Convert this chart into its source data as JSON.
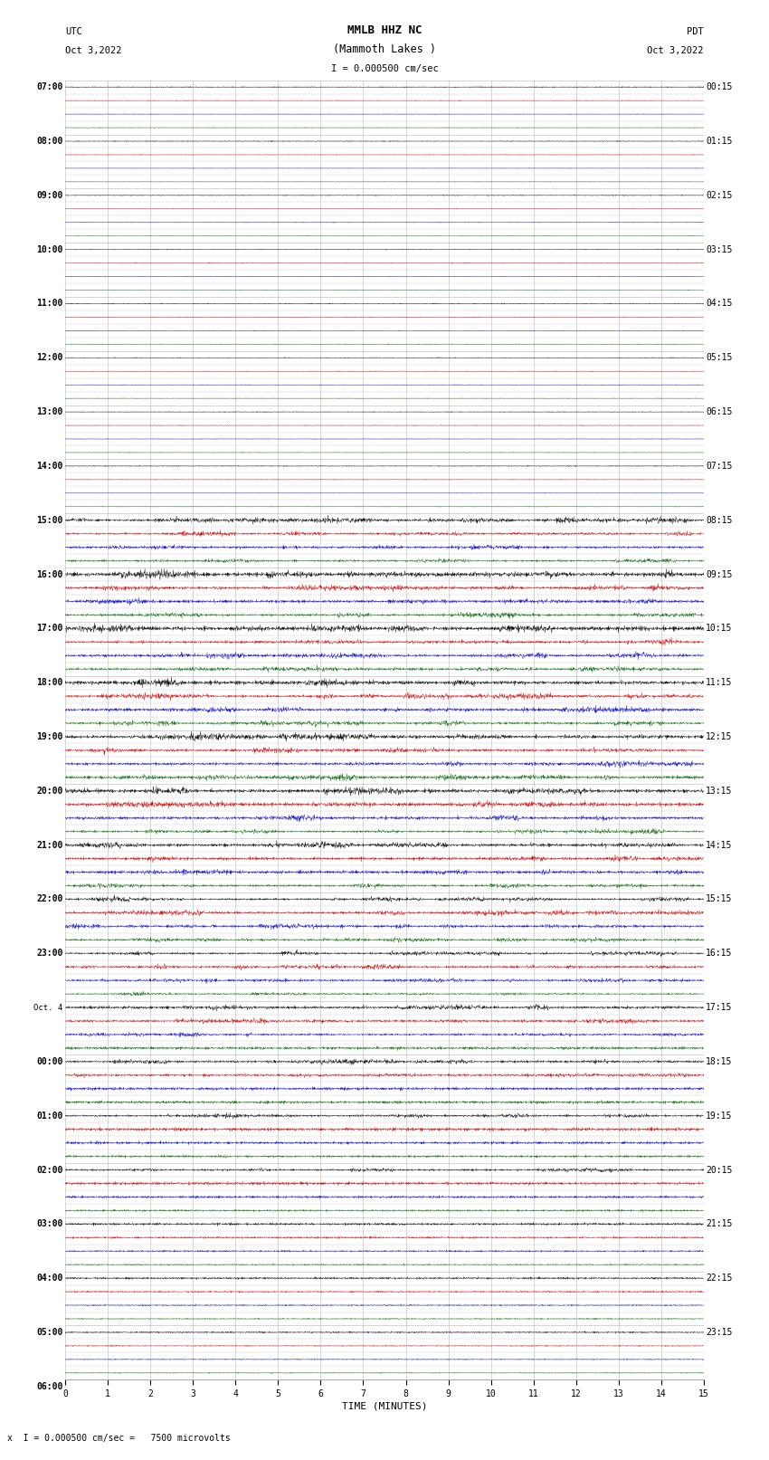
{
  "title_line1": "MMLB HHZ NC",
  "title_line2": "(Mammoth Lakes )",
  "title_line3": "I = 0.000500 cm/sec",
  "left_label_top": "UTC",
  "left_label_date": "Oct 3,2022",
  "right_label_top": "PDT",
  "right_label_date": "Oct 3,2022",
  "xlabel": "TIME (MINUTES)",
  "footer": "x  I = 0.000500 cm/sec =   7500 microvolts",
  "bg_color": "#ffffff",
  "trace_color_cycle": [
    "#000000",
    "#cc0000",
    "#0000cc",
    "#006600"
  ],
  "grid_color": "#888888",
  "x_ticks": [
    0,
    1,
    2,
    3,
    4,
    5,
    6,
    7,
    8,
    9,
    10,
    11,
    12,
    13,
    14,
    15
  ],
  "utc_labels": [
    "07:00",
    "",
    "",
    "",
    "08:00",
    "",
    "",
    "",
    "09:00",
    "",
    "",
    "",
    "10:00",
    "",
    "",
    "",
    "11:00",
    "",
    "",
    "",
    "12:00",
    "",
    "",
    "",
    "13:00",
    "",
    "",
    "",
    "14:00",
    "",
    "",
    "",
    "15:00",
    "",
    "",
    "",
    "16:00",
    "",
    "",
    "",
    "17:00",
    "",
    "",
    "",
    "18:00",
    "",
    "",
    "",
    "19:00",
    "",
    "",
    "",
    "20:00",
    "",
    "",
    "",
    "21:00",
    "",
    "",
    "",
    "22:00",
    "",
    "",
    "",
    "23:00",
    "",
    "",
    "",
    "Oct. 4",
    "",
    "",
    "",
    "00:00",
    "",
    "",
    "",
    "01:00",
    "",
    "",
    "",
    "02:00",
    "",
    "",
    "",
    "03:00",
    "",
    "",
    "",
    "04:00",
    "",
    "",
    "",
    "05:00",
    "",
    "",
    "",
    "06:00",
    "",
    "",
    ""
  ],
  "pdt_labels": [
    "00:15",
    "",
    "",
    "",
    "01:15",
    "",
    "",
    "",
    "02:15",
    "",
    "",
    "",
    "03:15",
    "",
    "",
    "",
    "04:15",
    "",
    "",
    "",
    "05:15",
    "",
    "",
    "",
    "06:15",
    "",
    "",
    "",
    "07:15",
    "",
    "",
    "",
    "08:15",
    "",
    "",
    "",
    "09:15",
    "",
    "",
    "",
    "10:15",
    "",
    "",
    "",
    "11:15",
    "",
    "",
    "",
    "12:15",
    "",
    "",
    "",
    "13:15",
    "",
    "",
    "",
    "14:15",
    "",
    "",
    "",
    "15:15",
    "",
    "",
    "",
    "16:15",
    "",
    "",
    "",
    "17:15",
    "",
    "",
    "",
    "18:15",
    "",
    "",
    "",
    "19:15",
    "",
    "",
    "",
    "20:15",
    "",
    "",
    "",
    "21:15",
    "",
    "",
    "",
    "22:15",
    "",
    "",
    "",
    "23:15",
    "",
    "",
    ""
  ],
  "n_rows": 96,
  "noise_scales": [
    0.012,
    0.008,
    0.007,
    0.007,
    0.01,
    0.008,
    0.007,
    0.007,
    0.01,
    0.008,
    0.007,
    0.007,
    0.01,
    0.008,
    0.007,
    0.007,
    0.01,
    0.008,
    0.007,
    0.007,
    0.01,
    0.008,
    0.007,
    0.007,
    0.01,
    0.008,
    0.007,
    0.007,
    0.01,
    0.008,
    0.007,
    0.007,
    0.08,
    0.06,
    0.05,
    0.045,
    0.09,
    0.07,
    0.065,
    0.06,
    0.095,
    0.08,
    0.07,
    0.065,
    0.09,
    0.075,
    0.07,
    0.065,
    0.085,
    0.075,
    0.065,
    0.06,
    0.08,
    0.07,
    0.06,
    0.055,
    0.075,
    0.065,
    0.055,
    0.05,
    0.07,
    0.06,
    0.055,
    0.05,
    0.065,
    0.055,
    0.05,
    0.045,
    0.06,
    0.05,
    0.045,
    0.04,
    0.055,
    0.045,
    0.04,
    0.035,
    0.05,
    0.04,
    0.035,
    0.03,
    0.045,
    0.035,
    0.03,
    0.025,
    0.035,
    0.025,
    0.02,
    0.018,
    0.025,
    0.018,
    0.015,
    0.013,
    0.02,
    0.015,
    0.013,
    0.012
  ]
}
